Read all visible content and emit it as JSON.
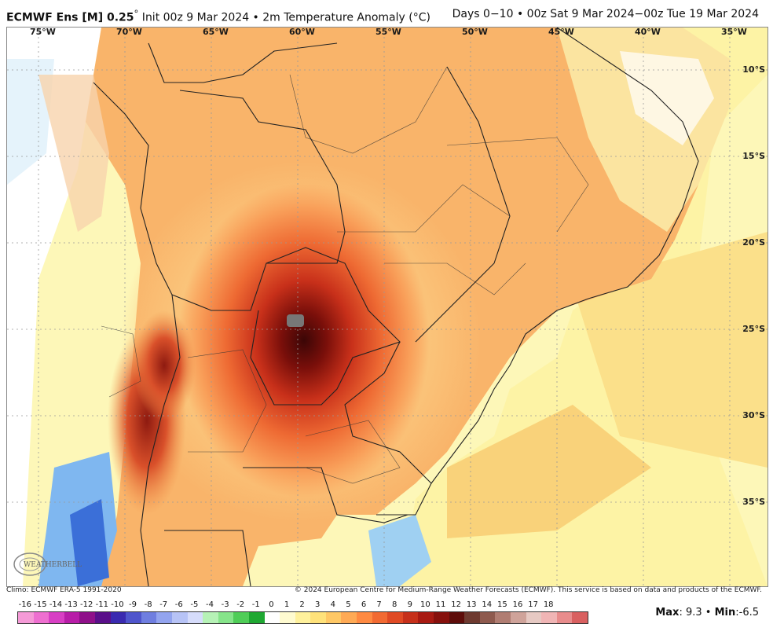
{
  "header": {
    "model": "ECMWF Ens [M] 0.25",
    "degree": "°",
    "title": " Init 00z 9 Mar 2024 • 2m Temperature Anomaly (°C)",
    "period": "Days 0−10 • 00z Sat 9 Mar 2024−00z Tue 19 Mar 2024"
  },
  "lon_labels": [
    "75°W",
    "70°W",
    "65°W",
    "60°W",
    "55°W",
    "50°W",
    "45°W",
    "40°W",
    "35°W"
  ],
  "lat_labels": [
    "10°S",
    "15°S",
    "20°S",
    "25°S",
    "30°S",
    "35°S"
  ],
  "footer": {
    "climo": "Climo: ECMWF ERA-5 1991-2020",
    "copyright": "© 2024 European Centre for Medium-Range Weather Forecasts (ECMWF). This service is based on data and products of the ECMWF."
  },
  "logo": {
    "text": "WEATHERBELL"
  },
  "colorbar": {
    "labels": [
      "-16",
      "-15",
      "-14",
      "-13",
      "-12",
      "-11",
      "-10",
      "-9",
      "-8",
      "-7",
      "-6",
      "-5",
      "-4",
      "-3",
      "-2",
      "-1",
      "0",
      "1",
      "2",
      "3",
      "4",
      "5",
      "6",
      "7",
      "8",
      "9",
      "10",
      "11",
      "12",
      "13",
      "14",
      "15",
      "16",
      "17",
      "18"
    ],
    "colors": [
      "#f59ad7",
      "#ee6fd0",
      "#d83fc4",
      "#b81da8",
      "#8f108a",
      "#5a0f8a",
      "#3a2ab0",
      "#4f55cc",
      "#6f7ee0",
      "#93a4ef",
      "#b7c3f6",
      "#d6dcfb",
      "#b6f2b6",
      "#86e48a",
      "#4fcd57",
      "#1fa832",
      "#ffffff",
      "#fffbd0",
      "#fff19c",
      "#ffe27a",
      "#ffc865",
      "#ffaa55",
      "#ff8a42",
      "#f26a32",
      "#e04a24",
      "#c6301a",
      "#a81a12",
      "#86100c",
      "#5e0d0a",
      "#6e3a30",
      "#8e5a4e",
      "#b07d72",
      "#cfa39a",
      "#e6c9c3",
      "#f0b5b5",
      "#e88c8c",
      "#d96060"
    ]
  },
  "stats": {
    "max_label": "Max",
    "max": "9.3",
    "sep": " • ",
    "min_label": "Min",
    "min": "-6.5"
  }
}
